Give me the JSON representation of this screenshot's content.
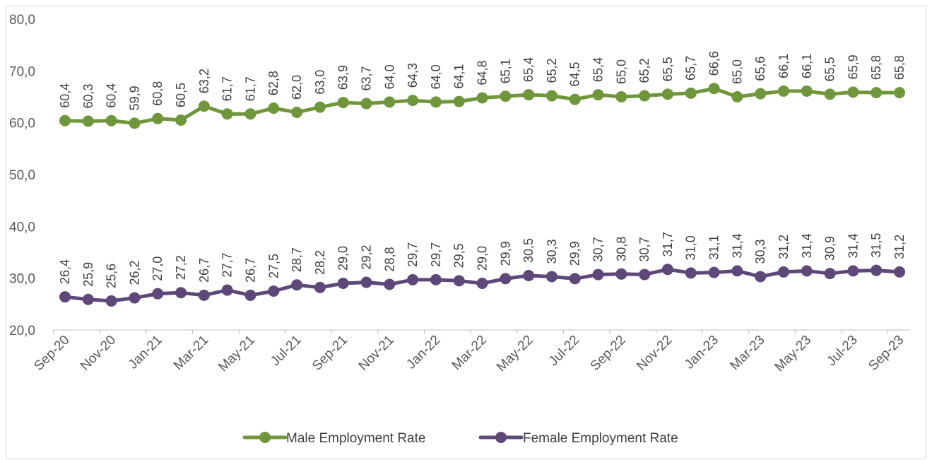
{
  "chart_data": {
    "type": "line",
    "title": "",
    "xlabel": "",
    "ylabel": "",
    "ylim": [
      20,
      80
    ],
    "yticks": [
      "20,0",
      "30,0",
      "40,0",
      "50,0",
      "60,0",
      "70,0",
      "80,0"
    ],
    "x": [
      "Sep-20",
      "Oct-20",
      "Nov-20",
      "Dec-20",
      "Jan-21",
      "Feb-21",
      "Mar-21",
      "Apr-21",
      "May-21",
      "Jun-21",
      "Jul-21",
      "Aug-21",
      "Sep-21",
      "Oct-21",
      "Nov-21",
      "Dec-21",
      "Jan-22",
      "Feb-22",
      "Mar-22",
      "Apr-22",
      "May-22",
      "Jun-22",
      "Jul-22",
      "Aug-22",
      "Sep-22",
      "Oct-22",
      "Nov-22",
      "Dec-22",
      "Jan-23",
      "Feb-23",
      "Mar-23",
      "Apr-23",
      "May-23",
      "Jun-23",
      "Jul-23",
      "Aug-23",
      "Sep-23"
    ],
    "x_tick_labels": [
      "Sep-20",
      "Nov-20",
      "Jan-21",
      "Mar-21",
      "May-21",
      "Jul-21",
      "Sep-21",
      "Nov-21",
      "Jan-22",
      "Mar-22",
      "May-22",
      "Jul-22",
      "Sep-22",
      "Nov-22",
      "Jan-23",
      "Mar-23",
      "May-23",
      "Jul-23",
      "Sep-23"
    ],
    "grid": false,
    "legend_position": "bottom",
    "series": [
      {
        "name": "Male Employment Rate",
        "color": "#70963c",
        "values": [
          60.4,
          60.3,
          60.4,
          59.9,
          60.8,
          60.5,
          63.2,
          61.7,
          61.7,
          62.8,
          62.0,
          63.0,
          63.9,
          63.7,
          64.0,
          64.3,
          64.0,
          64.1,
          64.8,
          65.1,
          65.4,
          65.2,
          64.5,
          65.4,
          65.0,
          65.2,
          65.5,
          65.7,
          66.6,
          65.0,
          65.6,
          66.1,
          66.1,
          65.5,
          65.9,
          65.8,
          65.8
        ],
        "labels": [
          "60,4",
          "60,3",
          "60,4",
          "59,9",
          "60,8",
          "60,5",
          "63,2",
          "61,7",
          "61,7",
          "62,8",
          "62,0",
          "63,0",
          "63,9",
          "63,7",
          "64,0",
          "64,3",
          "64,0",
          "64,1",
          "64,8",
          "65,1",
          "65,4",
          "65,2",
          "64,5",
          "65,4",
          "65,0",
          "65,2",
          "65,5",
          "65,7",
          "66,6",
          "65,0",
          "65,6",
          "66,1",
          "66,1",
          "65,5",
          "65,9",
          "65,8",
          "65,8"
        ]
      },
      {
        "name": "Female Employment Rate",
        "color": "#5e4779",
        "values": [
          26.4,
          25.9,
          25.6,
          26.2,
          27.0,
          27.2,
          26.7,
          27.7,
          26.7,
          27.5,
          28.7,
          28.2,
          29.0,
          29.2,
          28.8,
          29.7,
          29.7,
          29.5,
          29.0,
          29.9,
          30.5,
          30.3,
          29.9,
          30.7,
          30.8,
          30.7,
          31.7,
          31.0,
          31.1,
          31.4,
          30.3,
          31.2,
          31.4,
          30.9,
          31.4,
          31.5,
          31.2
        ],
        "labels": [
          "26,4",
          "25,9",
          "25,6",
          "26,2",
          "27,0",
          "27,2",
          "26,7",
          "27,7",
          "26,7",
          "27,5",
          "28,7",
          "28,2",
          "29,0",
          "29,2",
          "28,8",
          "29,7",
          "29,7",
          "29,5",
          "29,0",
          "29,9",
          "30,5",
          "30,3",
          "29,9",
          "30,7",
          "30,8",
          "30,7",
          "31,7",
          "31,0",
          "31,1",
          "31,4",
          "30,3",
          "31,2",
          "31,4",
          "30,9",
          "31,4",
          "31,5",
          "31,2"
        ]
      }
    ]
  }
}
